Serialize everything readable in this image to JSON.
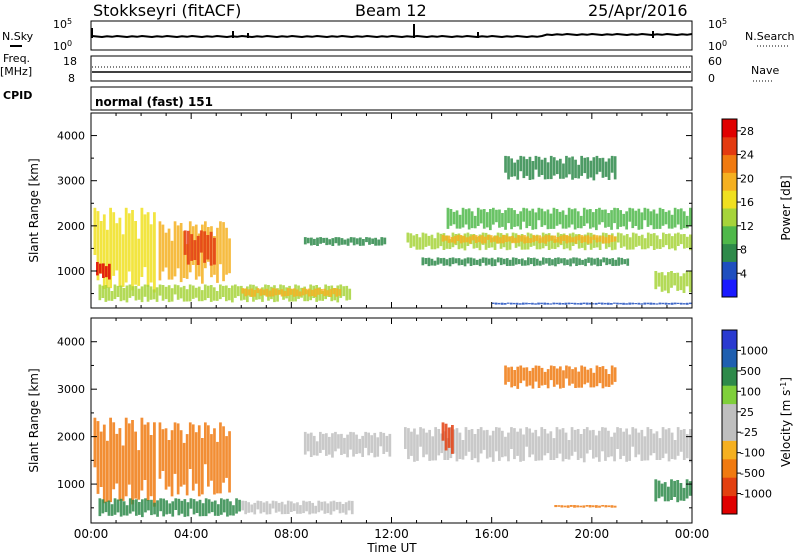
{
  "header": {
    "station": "Stokkseyri (fitACF)",
    "beam": "Beam 12",
    "date": "25/Apr/2016"
  },
  "strip_labels": {
    "nsky": "N.Sky",
    "nsearch": "N.Search",
    "freq": "Freq.",
    "freq_unit": "[MHz]",
    "nave": "Nave",
    "cpid": "CPID",
    "cpid_value": "normal (fast) 151",
    "noise_top": "10^5",
    "noise_bottom": "10^0",
    "freq_top": "18",
    "freq_bottom": "8",
    "nave_top": "60",
    "nave_bottom": "0"
  },
  "colors": {
    "power_scale": [
      "#1a1aff",
      "#1f4fbf",
      "#2e8a4a",
      "#4fb84a",
      "#a6d43a",
      "#f0e020",
      "#f5b020",
      "#f07a10",
      "#e33a10",
      "#e00000"
    ],
    "velocity_scale": [
      "#2a3ad0",
      "#1f5fb0",
      "#2e8a4a",
      "#7fcf3a",
      "#bfbfbf",
      "#bfbfbf",
      "#f5b020",
      "#f07a10",
      "#e34010",
      "#e00000"
    ],
    "gray": "#c0c0c0"
  },
  "chart_data": [
    {
      "type": "heatmap",
      "panel": "power",
      "xlabel": "",
      "ylabel": "Slant Range [km]",
      "xlim": [
        "00:00",
        "24:00"
      ],
      "ylim": [
        180,
        4500
      ],
      "y_ticks": [
        1000,
        2000,
        3000,
        4000
      ],
      "colorbar_label": "Power [dB]",
      "colorbar_ticks": [
        4,
        8,
        12,
        16,
        20,
        24,
        28
      ],
      "colorbar_range": [
        0,
        30
      ],
      "regions": [
        {
          "t0": 0.1,
          "t1": 2.6,
          "r0": 500,
          "r1": 2400,
          "level": 16
        },
        {
          "t0": 0.2,
          "t1": 0.8,
          "r0": 800,
          "r1": 1200,
          "level": 28
        },
        {
          "t0": 2.7,
          "t1": 5.6,
          "r0": 700,
          "r1": 2100,
          "level": 18
        },
        {
          "t0": 3.7,
          "t1": 5.0,
          "r0": 1100,
          "r1": 1900,
          "level": 26
        },
        {
          "t0": 0.3,
          "t1": 10.4,
          "r0": 300,
          "r1": 700,
          "level": 12
        },
        {
          "t0": 6.0,
          "t1": 10.0,
          "r0": 420,
          "r1": 620,
          "level": 20
        },
        {
          "t0": 8.5,
          "t1": 11.8,
          "r0": 1550,
          "r1": 1750,
          "level": 6
        },
        {
          "t0": 12.6,
          "t1": 24.0,
          "r0": 1450,
          "r1": 1850,
          "level": 12
        },
        {
          "t0": 14.0,
          "t1": 21.0,
          "r0": 1600,
          "r1": 1800,
          "level": 20
        },
        {
          "t0": 14.2,
          "t1": 24.0,
          "r0": 1900,
          "r1": 2400,
          "level": 10
        },
        {
          "t0": 16.5,
          "t1": 21.0,
          "r0": 3000,
          "r1": 3550,
          "level": 6
        },
        {
          "t0": 13.2,
          "t1": 21.5,
          "r0": 1100,
          "r1": 1300,
          "level": 6
        },
        {
          "t0": 16.0,
          "t1": 24.0,
          "r0": 250,
          "r1": 300,
          "level": 4
        },
        {
          "t0": 22.5,
          "t1": 24.0,
          "r0": 500,
          "r1": 1000,
          "level": 14
        }
      ]
    },
    {
      "type": "heatmap",
      "panel": "velocity",
      "xlabel": "Time UT",
      "ylabel": "Slant Range [km]",
      "xlim": [
        "00:00",
        "24:00"
      ],
      "x_ticks": [
        "00:00",
        "04:00",
        "08:00",
        "12:00",
        "16:00",
        "20:00",
        "00:00"
      ],
      "ylim": [
        180,
        4500
      ],
      "y_ticks": [
        1000,
        2000,
        3000,
        4000
      ],
      "colorbar_label": "Velocity [m s^-1]",
      "colorbar_ticks": [
        "1000",
        "500",
        "100",
        "25",
        "-25",
        "-100",
        "-500",
        "-1000"
      ],
      "regions": [
        {
          "t0": 0.1,
          "t1": 2.6,
          "r0": 500,
          "r1": 2400,
          "level": -300
        },
        {
          "t0": 2.7,
          "t1": 5.6,
          "r0": 700,
          "r1": 2300,
          "level": -300
        },
        {
          "t0": 0.3,
          "t1": 6.0,
          "r0": 300,
          "r1": 700,
          "level": 100
        },
        {
          "t0": 6.0,
          "t1": 10.5,
          "r0": 350,
          "r1": 650,
          "level": 0
        },
        {
          "t0": 8.5,
          "t1": 12.0,
          "r0": 1550,
          "r1": 2100,
          "level": 0
        },
        {
          "t0": 12.5,
          "t1": 24.0,
          "r0": 1450,
          "r1": 2200,
          "level": 0
        },
        {
          "t0": 16.5,
          "t1": 21.0,
          "r0": 3000,
          "r1": 3500,
          "level": -150
        },
        {
          "t0": 14.0,
          "t1": 14.5,
          "r0": 1600,
          "r1": 2300,
          "level": -600
        },
        {
          "t0": 18.5,
          "t1": 21.0,
          "r0": 500,
          "r1": 560,
          "level": -400
        },
        {
          "t0": 22.5,
          "t1": 24.0,
          "r0": 600,
          "r1": 1100,
          "level": 150
        }
      ]
    }
  ]
}
